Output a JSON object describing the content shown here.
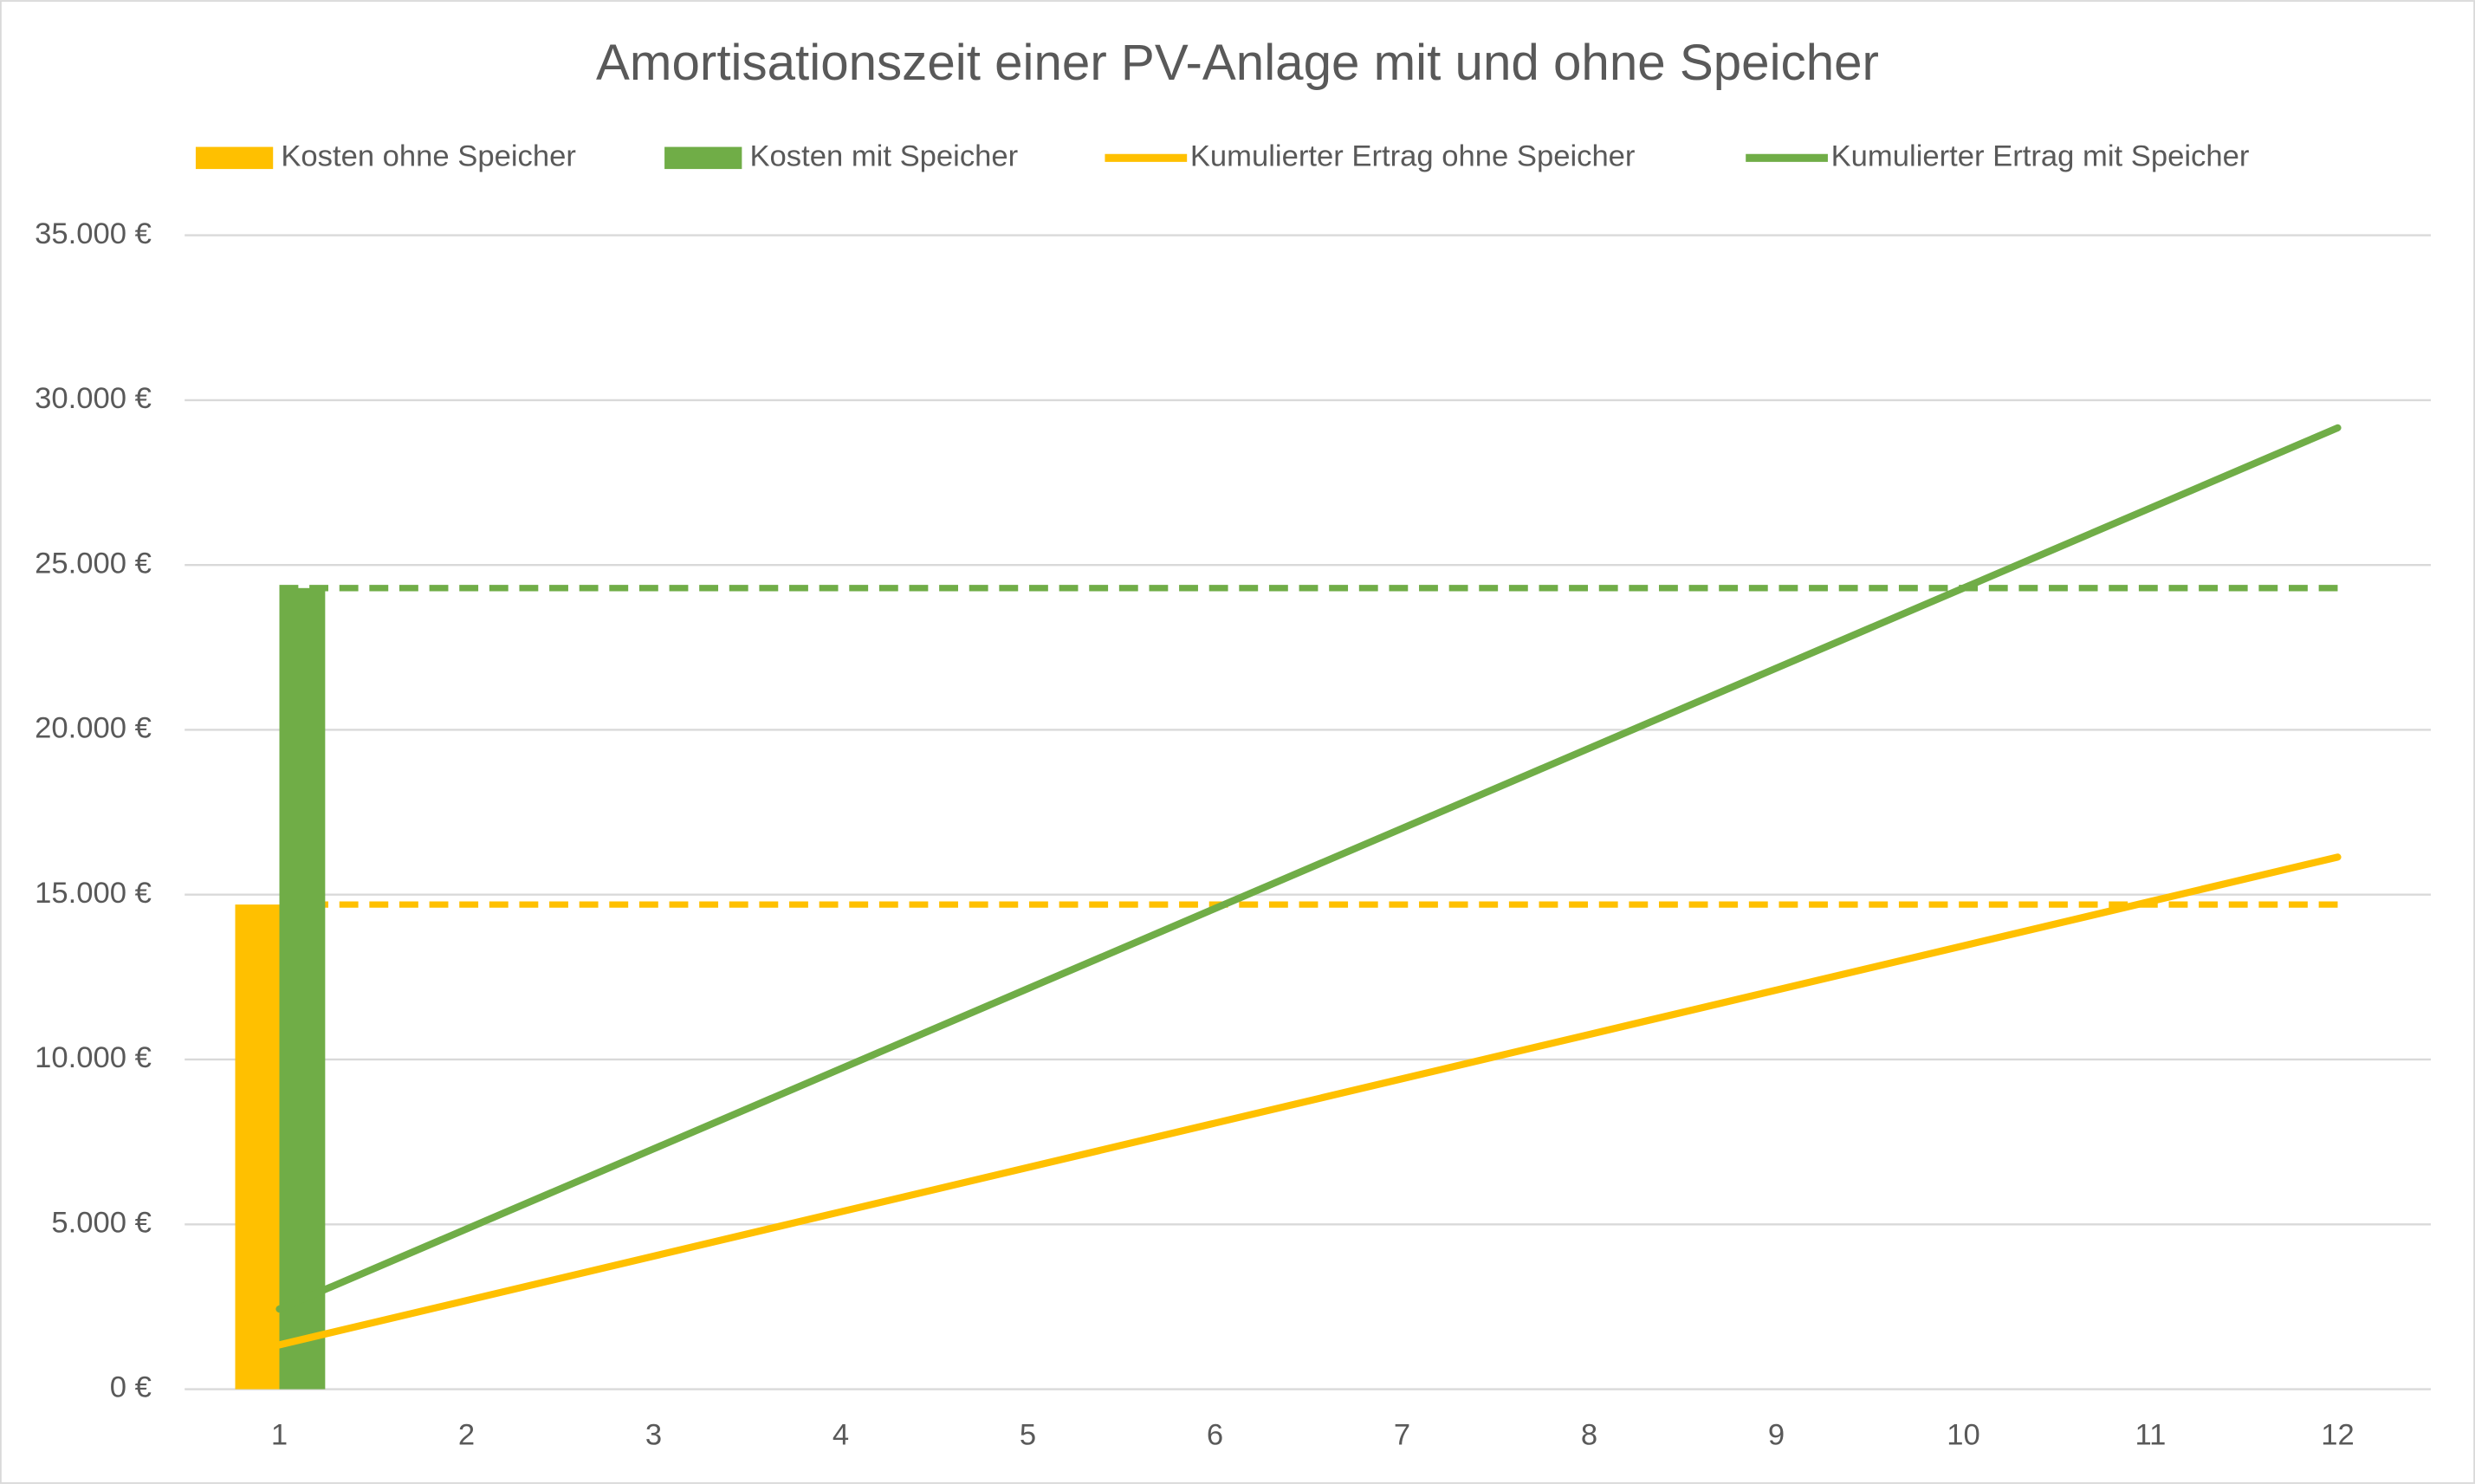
{
  "chart_data": {
    "type": "bar",
    "title": "Amortisationszeit einer PV-Anlage mit und ohne Speicher",
    "categories": [
      1,
      2,
      3,
      4,
      5,
      6,
      7,
      8,
      9,
      10,
      11,
      12
    ],
    "series": [
      {
        "name": "Kosten ohne Speicher",
        "type": "bar",
        "color": "#ffc000",
        "values": [
          14700,
          null,
          null,
          null,
          null,
          null,
          null,
          null,
          null,
          null,
          null,
          null
        ]
      },
      {
        "name": "Kosten mit Speicher",
        "type": "bar",
        "color": "#70ad47",
        "values": [
          24300,
          null,
          null,
          null,
          null,
          null,
          null,
          null,
          null,
          null,
          null,
          null
        ]
      },
      {
        "name": "Kumulierter Ertrag ohne Speicher",
        "type": "line",
        "color": "#ffc000",
        "values": [
          1345,
          2690,
          4035,
          5380,
          6725,
          8070,
          9415,
          10760,
          12105,
          13450,
          14795,
          16140
        ]
      },
      {
        "name": "Kumulierter Ertrag mit Speicher",
        "type": "line",
        "color": "#70ad47",
        "values": [
          2430,
          4860,
          7290,
          9720,
          12150,
          14580,
          17010,
          19440,
          21870,
          24300,
          26730,
          29160
        ]
      }
    ],
    "ylim": [
      0,
      35000
    ],
    "yticks": [
      {
        "value": 0,
        "label": "0 €"
      },
      {
        "value": 5000,
        "label": "5.000 €"
      },
      {
        "value": 10000,
        "label": "10.000 €"
      },
      {
        "value": 15000,
        "label": "15.000 €"
      },
      {
        "value": 20000,
        "label": "20.000 €"
      },
      {
        "value": 25000,
        "label": "25.000 €"
      },
      {
        "value": 30000,
        "label": "30.000 €"
      },
      {
        "value": 35000,
        "label": "35.000 €"
      }
    ],
    "grid": true,
    "legend": "top"
  }
}
